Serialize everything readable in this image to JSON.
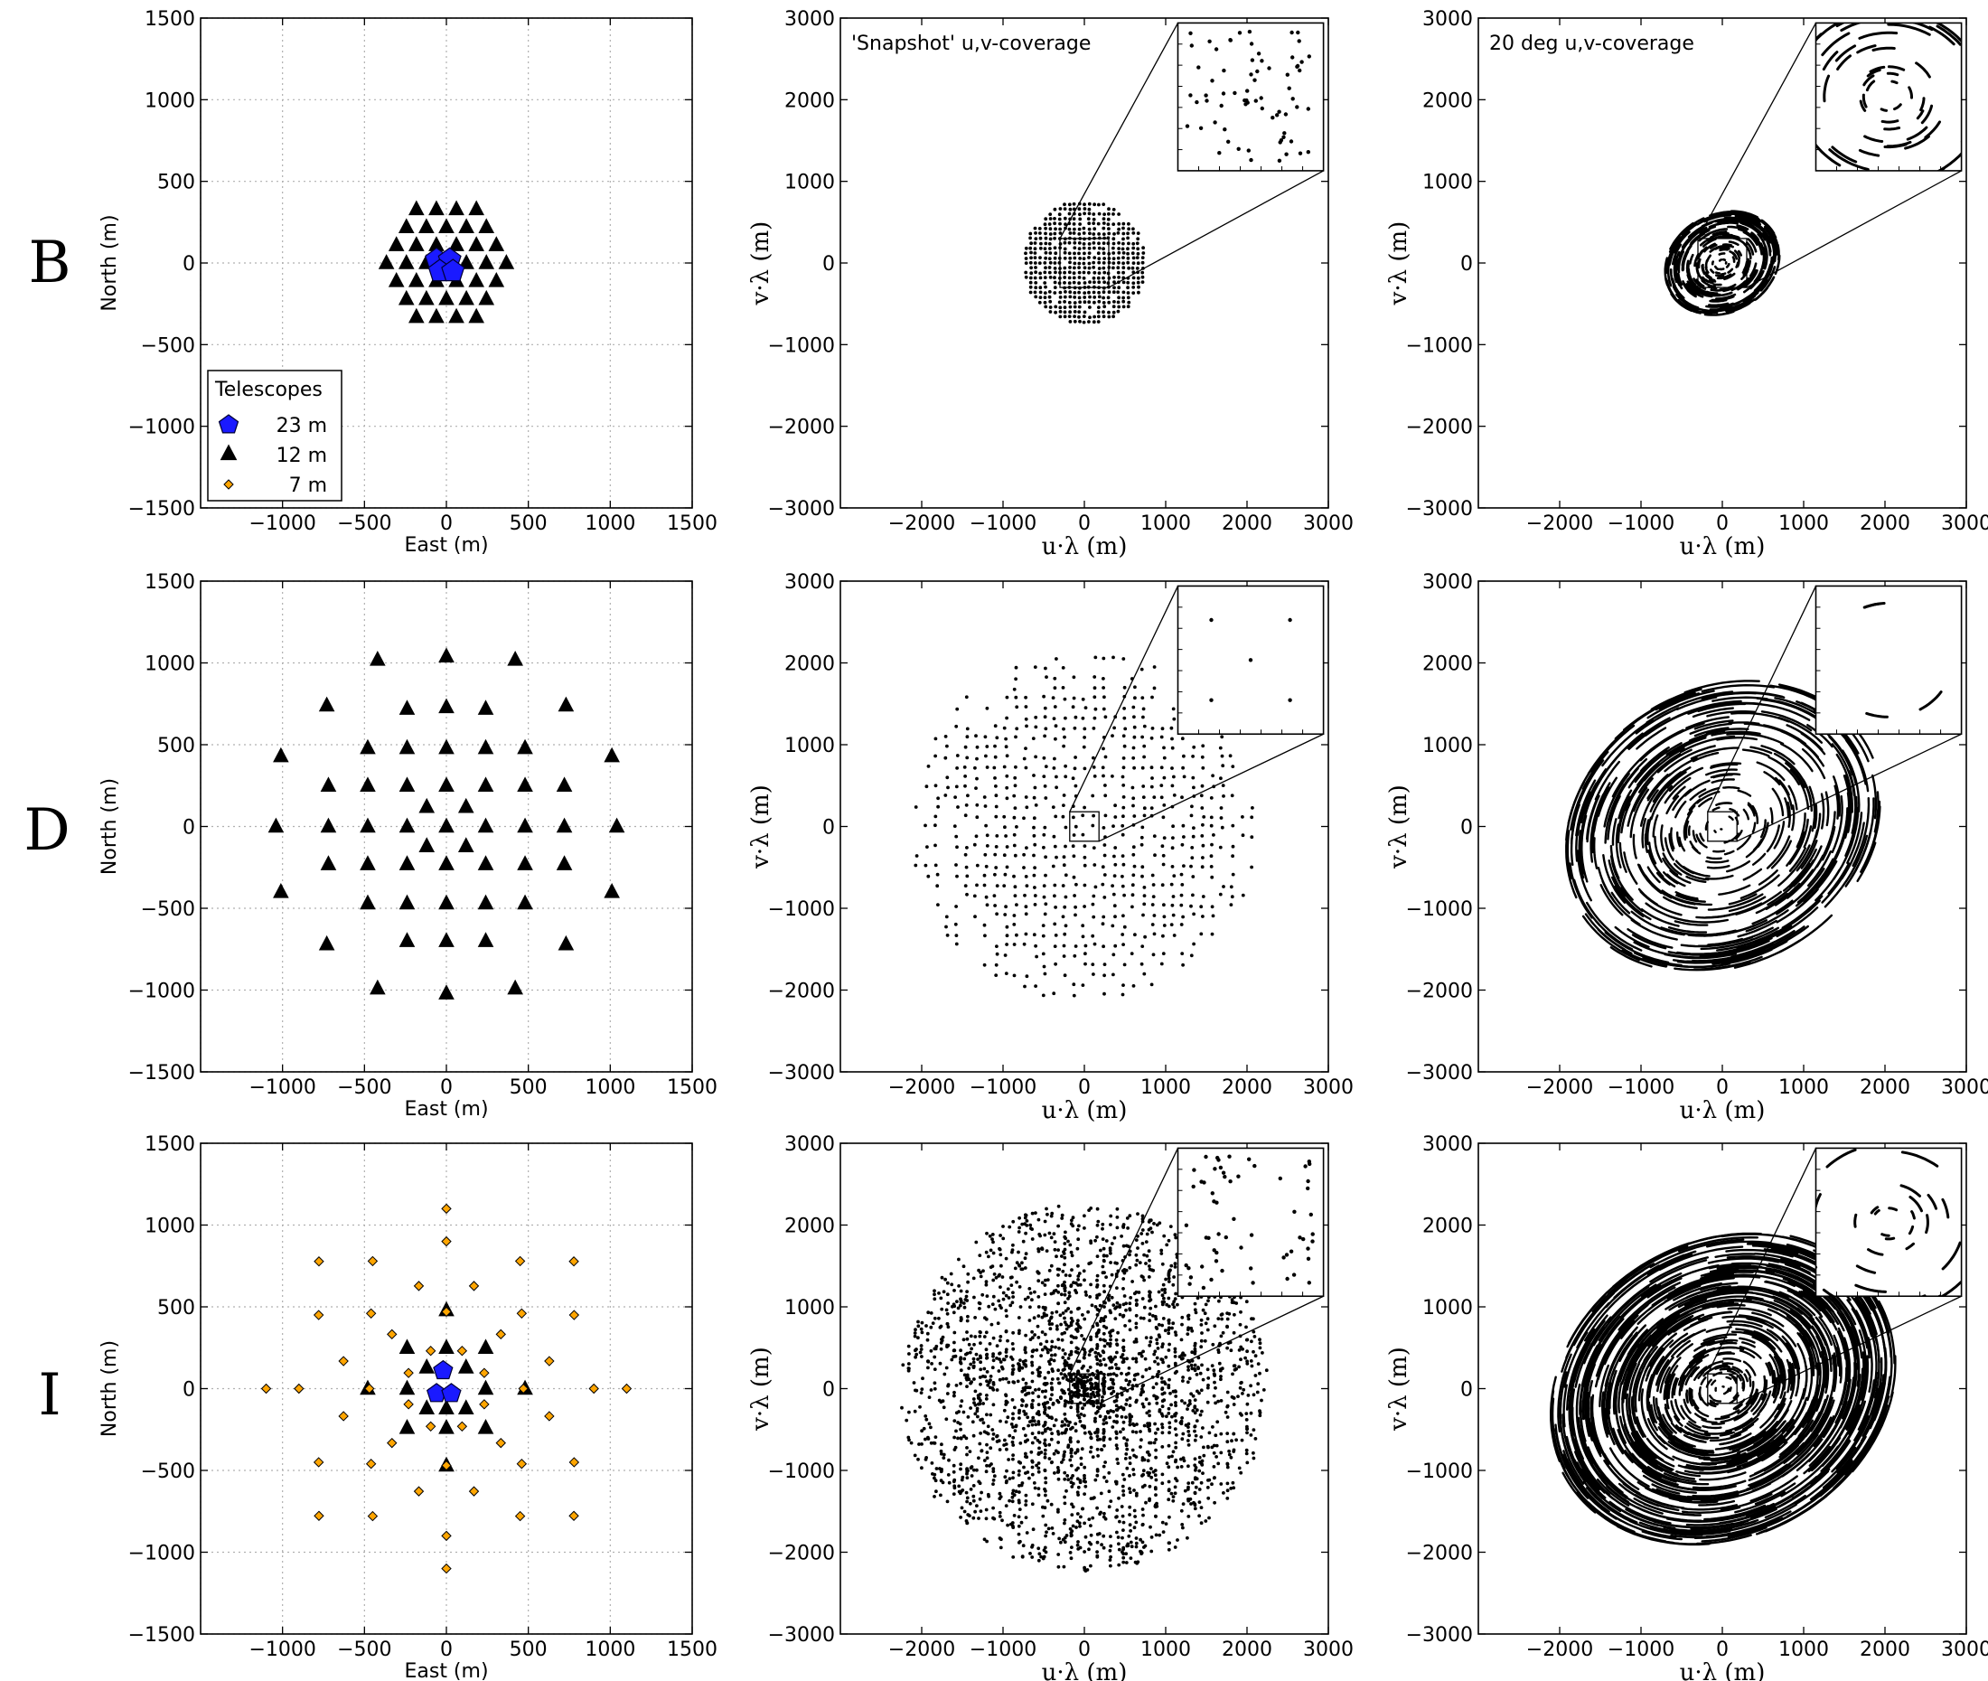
{
  "figure": {
    "row_labels": [
      "B",
      "D",
      "I"
    ],
    "legend": {
      "title": "Telescopes",
      "entries": [
        {
          "label": "23 m",
          "marker": "pentagon",
          "color": "#1a1aff"
        },
        {
          "label": "12 m",
          "marker": "triangle",
          "color": "#000000"
        },
        {
          "label": "7 m",
          "marker": "diamond",
          "color": "#ffa500"
        }
      ]
    },
    "annotations": {
      "snapshot": "'Snapshot' u,v-coverage",
      "track": "20 deg u,v-coverage"
    },
    "colors": {
      "dish23": "#1a1aff",
      "dish12": "#000000",
      "dish7": "#ffa500",
      "grid": "#b0b0b0"
    }
  },
  "chart_data": [
    {
      "type": "scatter",
      "panel": "B-layout",
      "row": "B",
      "xlabel": "East (m)",
      "ylabel": "North (m)",
      "xlim": [
        -1500,
        1500
      ],
      "ylim": [
        -1500,
        1500
      ],
      "xticks": [
        -1000,
        -500,
        0,
        500,
        1000,
        1500
      ],
      "yticks": [
        -1500,
        -1000,
        -500,
        0,
        500,
        1000,
        1500
      ],
      "grid": true,
      "legend": "lower-left",
      "series": [
        {
          "name": "23 m",
          "marker": "pentagon",
          "points": [
            [
              -60,
              20
            ],
            [
              20,
              20
            ],
            [
              -40,
              -50
            ],
            [
              40,
              -50
            ]
          ]
        },
        {
          "name": "12 m",
          "marker": "triangle",
          "points": "hexagonal array of 12 m dishes, spacing ~122 m, radius ~380 m"
        }
      ]
    },
    {
      "type": "scatter",
      "panel": "B-snapshot",
      "row": "B",
      "xlabel": "u·λ (m)",
      "ylabel": "v·λ (m)",
      "xlim": [
        -3000,
        3000
      ],
      "ylim": [
        -3000,
        3000
      ],
      "xticks": [
        -2000,
        -1000,
        0,
        1000,
        2000,
        3000
      ],
      "yticks": [
        -3000,
        -2000,
        -1000,
        0,
        1000,
        2000,
        3000
      ],
      "grid": false,
      "annotation": "'Snapshot' u,v-coverage",
      "inset": true
    },
    {
      "type": "scatter",
      "panel": "B-track",
      "row": "B",
      "xlabel": "u·λ (m)",
      "ylabel": "v·λ (m)",
      "xlim": [
        -3000,
        3000
      ],
      "ylim": [
        -3000,
        3000
      ],
      "xticks": [
        -2000,
        -1000,
        0,
        1000,
        2000,
        3000
      ],
      "yticks": [
        -3000,
        -2000,
        -1000,
        0,
        1000,
        2000,
        3000
      ],
      "grid": false,
      "annotation": "20 deg u,v-coverage",
      "inset": true
    },
    {
      "type": "scatter",
      "panel": "D-layout",
      "row": "D",
      "xlabel": "East (m)",
      "ylabel": "North (m)",
      "xlim": [
        -1500,
        1500
      ],
      "ylim": [
        -1500,
        1500
      ],
      "xticks": [
        -1000,
        -500,
        0,
        500,
        1000,
        1500
      ],
      "yticks": [
        -1500,
        -1000,
        -500,
        0,
        500,
        1000,
        1500
      ],
      "grid": true,
      "series": [
        {
          "name": "12 m",
          "marker": "triangle",
          "points": [
            [
              0,
              1040
            ],
            [
              -420,
              1020
            ],
            [
              420,
              1020
            ],
            [
              -730,
              740
            ],
            [
              730,
              740
            ],
            [
              -240,
              720
            ],
            [
              0,
              730
            ],
            [
              240,
              720
            ],
            [
              -1010,
              430
            ],
            [
              1010,
              430
            ],
            [
              -480,
              480
            ],
            [
              -240,
              480
            ],
            [
              0,
              480
            ],
            [
              240,
              480
            ],
            [
              480,
              480
            ],
            [
              -720,
              250
            ],
            [
              -480,
              250
            ],
            [
              -240,
              250
            ],
            [
              0,
              250
            ],
            [
              240,
              250
            ],
            [
              480,
              250
            ],
            [
              720,
              250
            ],
            [
              -1040,
              0
            ],
            [
              -720,
              0
            ],
            [
              -480,
              0
            ],
            [
              -240,
              0
            ],
            [
              0,
              0
            ],
            [
              240,
              0
            ],
            [
              480,
              0
            ],
            [
              720,
              0
            ],
            [
              1040,
              0
            ],
            [
              -720,
              -230
            ],
            [
              -480,
              -230
            ],
            [
              -240,
              -230
            ],
            [
              0,
              -230
            ],
            [
              240,
              -230
            ],
            [
              480,
              -230
            ],
            [
              720,
              -230
            ],
            [
              -1010,
              -400
            ],
            [
              1010,
              -400
            ],
            [
              -480,
              -470
            ],
            [
              -240,
              -470
            ],
            [
              0,
              -470
            ],
            [
              240,
              -470
            ],
            [
              480,
              -470
            ],
            [
              -240,
              -700
            ],
            [
              0,
              -700
            ],
            [
              240,
              -700
            ],
            [
              -730,
              -720
            ],
            [
              730,
              -720
            ],
            [
              -420,
              -990
            ],
            [
              420,
              -990
            ],
            [
              0,
              -1020
            ],
            [
              -120,
              120
            ],
            [
              120,
              120
            ],
            [
              -120,
              -120
            ],
            [
              120,
              -120
            ]
          ]
        }
      ]
    },
    {
      "type": "scatter",
      "panel": "D-snapshot",
      "row": "D",
      "xlabel": "u·λ (m)",
      "ylabel": "v·λ (m)",
      "xlim": [
        -3000,
        3000
      ],
      "ylim": [
        -3000,
        3000
      ],
      "xticks": [
        -2000,
        -1000,
        0,
        1000,
        2000,
        3000
      ],
      "yticks": [
        -3000,
        -2000,
        -1000,
        0,
        1000,
        2000,
        3000
      ],
      "grid": false,
      "inset": true
    },
    {
      "type": "scatter",
      "panel": "D-track",
      "row": "D",
      "xlabel": "u·λ (m)",
      "ylabel": "v·λ (m)",
      "xlim": [
        -3000,
        3000
      ],
      "ylim": [
        -3000,
        3000
      ],
      "xticks": [
        -2000,
        -1000,
        0,
        1000,
        2000,
        3000
      ],
      "yticks": [
        -3000,
        -2000,
        -1000,
        0,
        1000,
        2000,
        3000
      ],
      "grid": false,
      "inset": true
    },
    {
      "type": "scatter",
      "panel": "I-layout",
      "row": "I",
      "xlabel": "East (m)",
      "ylabel": "North (m)",
      "xlim": [
        -1500,
        1500
      ],
      "ylim": [
        -1500,
        1500
      ],
      "xticks": [
        -1000,
        -500,
        0,
        500,
        1000,
        1500
      ],
      "yticks": [
        -1500,
        -1000,
        -500,
        0,
        500,
        1000,
        1500
      ],
      "grid": true,
      "series": [
        {
          "name": "23 m",
          "marker": "pentagon",
          "points": [
            [
              -60,
              -30
            ],
            [
              30,
              -30
            ],
            [
              -20,
              110
            ]
          ]
        },
        {
          "name": "12 m",
          "marker": "triangle",
          "points": [
            [
              0,
              480
            ],
            [
              -240,
              250
            ],
            [
              0,
              250
            ],
            [
              240,
              250
            ],
            [
              -120,
              130
            ],
            [
              120,
              130
            ],
            [
              -480,
              0
            ],
            [
              -240,
              0
            ],
            [
              240,
              0
            ],
            [
              480,
              0
            ],
            [
              -120,
              -120
            ],
            [
              0,
              -120
            ],
            [
              120,
              -120
            ],
            [
              -240,
              -240
            ],
            [
              0,
              -240
            ],
            [
              240,
              -240
            ],
            [
              0,
              -470
            ]
          ]
        },
        {
          "name": "7 m",
          "marker": "diamond",
          "points": "concentric rings of 7 m dishes, radii ~250, ~470, ~650, ~900, ~1100 m"
        }
      ]
    },
    {
      "type": "scatter",
      "panel": "I-snapshot",
      "row": "I",
      "xlabel": "u·λ (m)",
      "ylabel": "v·λ (m)",
      "xlim": [
        -3000,
        3000
      ],
      "ylim": [
        -3000,
        3000
      ],
      "xticks": [
        -2000,
        -1000,
        0,
        1000,
        2000,
        3000
      ],
      "yticks": [
        -3000,
        -2000,
        -1000,
        0,
        1000,
        2000,
        3000
      ],
      "grid": false,
      "inset": true
    },
    {
      "type": "scatter",
      "panel": "I-track",
      "row": "I",
      "xlabel": "u·λ (m)",
      "ylabel": "v·λ (m)",
      "xlim": [
        -3000,
        3000
      ],
      "ylim": [
        -3000,
        3000
      ],
      "xticks": [
        -2000,
        -1000,
        0,
        1000,
        2000,
        3000
      ],
      "yticks": [
        -3000,
        -2000,
        -1000,
        0,
        1000,
        2000,
        3000
      ],
      "grid": false,
      "inset": true
    }
  ]
}
